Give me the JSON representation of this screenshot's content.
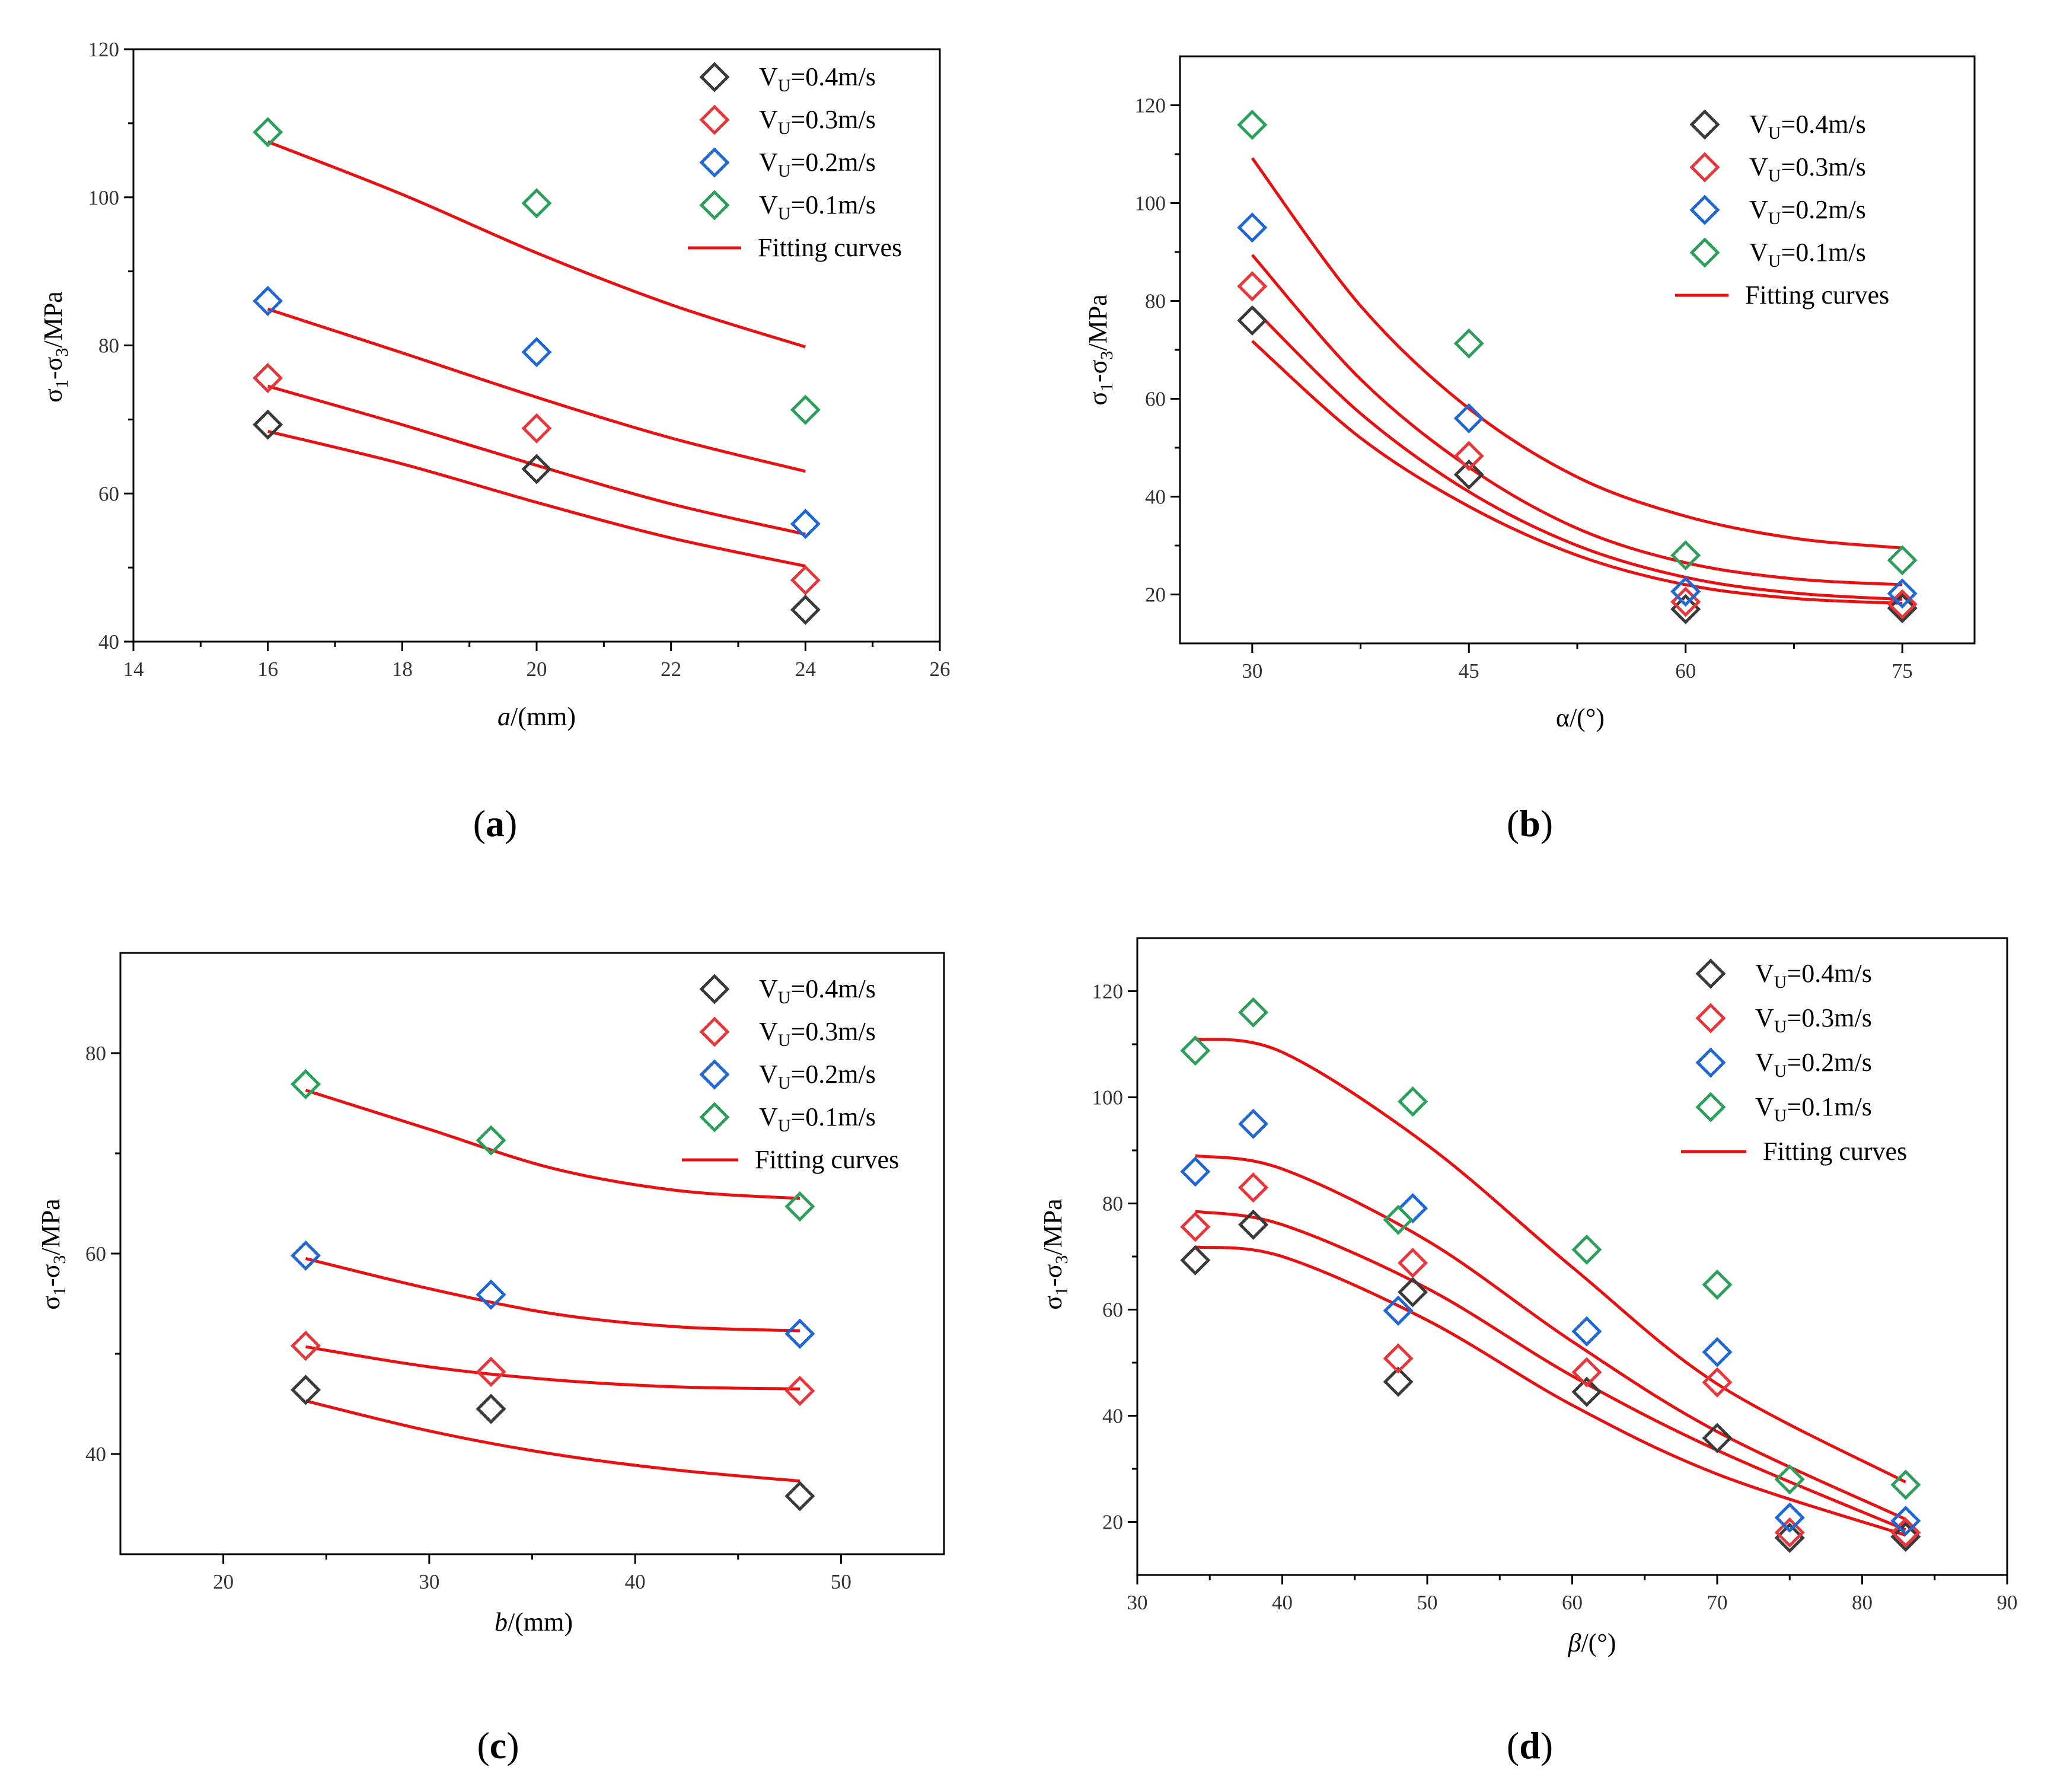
{
  "chart_data": [
    {
      "type": "scatter",
      "panel_label": "(a)",
      "xlabel_italic": "a",
      "xlabel_rest": "/(mm)",
      "ylabel": "σ1-σ3/MPa",
      "xlim": [
        14,
        26
      ],
      "ylim": [
        40,
        120
      ],
      "xticks": [
        14,
        16,
        18,
        20,
        22,
        24,
        26
      ],
      "yticks": [
        40,
        60,
        80,
        100,
        120
      ],
      "legend_position": "top-right",
      "series": [
        {
          "name": "VU=0.4m/s",
          "label_main": "V",
          "label_sub": "U",
          "label_rest": "=0.4m/s",
          "color": "#3a3a3a",
          "points": [
            [
              16,
              69.3
            ],
            [
              20,
              63.3
            ],
            [
              24,
              44.3
            ]
          ],
          "fit": [
            [
              16,
              68.4
            ],
            [
              18,
              64.0
            ],
            [
              20,
              58.8
            ],
            [
              22,
              54.0
            ],
            [
              24,
              50.2
            ]
          ]
        },
        {
          "name": "VU=0.3m/s",
          "label_main": "V",
          "label_sub": "U",
          "label_rest": "=0.3m/s",
          "color": "#e8363a",
          "points": [
            [
              16,
              75.6
            ],
            [
              20,
              68.8
            ],
            [
              24,
              48.3
            ]
          ],
          "fit": [
            [
              16,
              74.5
            ],
            [
              18,
              69.3
            ],
            [
              20,
              63.8
            ],
            [
              22,
              58.6
            ],
            [
              24,
              54.5
            ]
          ]
        },
        {
          "name": "VU=0.2m/s",
          "label_main": "V",
          "label_sub": "U",
          "label_rest": "=0.2m/s",
          "color": "#1f66d6",
          "points": [
            [
              16,
              86.0
            ],
            [
              20,
              79.1
            ],
            [
              24,
              55.9
            ]
          ],
          "fit": [
            [
              16,
              84.9
            ],
            [
              18,
              79.0
            ],
            [
              20,
              73.0
            ],
            [
              22,
              67.5
            ],
            [
              24,
              63.0
            ]
          ]
        },
        {
          "name": "VU=0.1m/s",
          "label_main": "V",
          "label_sub": "U",
          "label_rest": "=0.1m/s",
          "color": "#2ca05a",
          "points": [
            [
              16,
              108.8
            ],
            [
              20,
              99.2
            ],
            [
              24,
              71.3
            ]
          ],
          "fit": [
            [
              16,
              107.5
            ],
            [
              18,
              100.4
            ],
            [
              20,
              92.5
            ],
            [
              22,
              85.5
            ],
            [
              24,
              79.8
            ]
          ]
        }
      ],
      "fit_label": "Fitting curves"
    },
    {
      "type": "scatter",
      "panel_label": "(b)",
      "xlabel_italic": "",
      "xlabel_rest": "α/(°)",
      "ylabel": "σ1-σ3/MPa",
      "xlim": [
        25,
        80
      ],
      "ylim": [
        10,
        130
      ],
      "xticks": [
        30,
        45,
        60,
        75
      ],
      "yticks": [
        20,
        40,
        60,
        80,
        100,
        120
      ],
      "legend_position": "top-right",
      "series": [
        {
          "name": "VU=0.4m/s",
          "label_main": "V",
          "label_sub": "U",
          "label_rest": "=0.4m/s",
          "color": "#3a3a3a",
          "points": [
            [
              30,
              76.0
            ],
            [
              45,
              44.5
            ],
            [
              60,
              17.0
            ],
            [
              75,
              17.2
            ]
          ],
          "fit": [
            [
              30,
              71.8
            ],
            [
              37.5,
              52.0
            ],
            [
              45,
              38.0
            ],
            [
              52.5,
              28.0
            ],
            [
              60,
              22.0
            ],
            [
              67.5,
              19.2
            ],
            [
              75,
              18.2
            ]
          ]
        },
        {
          "name": "VU=0.3m/s",
          "label_main": "V",
          "label_sub": "U",
          "label_rest": "=0.3m/s",
          "color": "#e8363a",
          "points": [
            [
              30,
              83.0
            ],
            [
              45,
              48.3
            ],
            [
              60,
              18.5
            ],
            [
              75,
              18.0
            ]
          ],
          "fit": [
            [
              30,
              78.7
            ],
            [
              37.5,
              57.0
            ],
            [
              45,
              41.0
            ],
            [
              52.5,
              30.0
            ],
            [
              60,
              23.5
            ],
            [
              67.5,
              20.3
            ],
            [
              75,
              19.0
            ]
          ]
        },
        {
          "name": "VU=0.2m/s",
          "label_main": "V",
          "label_sub": "U",
          "label_rest": "=0.2m/s",
          "color": "#1f66d6",
          "points": [
            [
              30,
              95.0
            ],
            [
              45,
              56.0
            ],
            [
              60,
              20.6
            ],
            [
              75,
              20.2
            ]
          ],
          "fit": [
            [
              30,
              89.4
            ],
            [
              37.5,
              64.0
            ],
            [
              45,
              46.0
            ],
            [
              52.5,
              33.5
            ],
            [
              60,
              26.5
            ],
            [
              67.5,
              23.2
            ],
            [
              75,
              22.0
            ]
          ]
        },
        {
          "name": "VU=0.1m/s",
          "label_main": "V",
          "label_sub": "U",
          "label_rest": "=0.1m/s",
          "color": "#2ca05a",
          "points": [
            [
              30,
              116.0
            ],
            [
              45,
              71.3
            ],
            [
              60,
              28.0
            ],
            [
              75,
              27.0
            ]
          ],
          "fit": [
            [
              30,
              109.2
            ],
            [
              37.5,
              79.0
            ],
            [
              45,
              58.0
            ],
            [
              52.5,
              44.0
            ],
            [
              60,
              36.0
            ],
            [
              67.5,
              31.5
            ],
            [
              75,
              29.5
            ]
          ]
        }
      ],
      "fit_label": "Fitting curves"
    },
    {
      "type": "scatter",
      "panel_label": "(c)",
      "xlabel_italic": "b",
      "xlabel_rest": "/(mm)",
      "ylabel": "σ1-σ3/MPa",
      "xlim": [
        15,
        55
      ],
      "ylim": [
        30,
        90
      ],
      "xticks": [
        20,
        30,
        40,
        50
      ],
      "yticks": [
        40,
        60,
        80
      ],
      "legend_position": "top-right",
      "series": [
        {
          "name": "VU=0.4m/s",
          "label_main": "V",
          "label_sub": "U",
          "label_rest": "=0.4m/s",
          "color": "#3a3a3a",
          "points": [
            [
              24,
              46.4
            ],
            [
              33,
              44.5
            ],
            [
              48,
              35.8
            ]
          ],
          "fit": [
            [
              24,
              45.3
            ],
            [
              30,
              42.3
            ],
            [
              36,
              40.0
            ],
            [
              42,
              38.4
            ],
            [
              48,
              37.3
            ]
          ]
        },
        {
          "name": "VU=0.3m/s",
          "label_main": "V",
          "label_sub": "U",
          "label_rest": "=0.3m/s",
          "color": "#e8363a",
          "points": [
            [
              24,
              50.8
            ],
            [
              33,
              48.2
            ],
            [
              48,
              46.3
            ]
          ],
          "fit": [
            [
              24,
              50.7
            ],
            [
              30,
              48.7
            ],
            [
              36,
              47.4
            ],
            [
              42,
              46.7
            ],
            [
              48,
              46.5
            ]
          ]
        },
        {
          "name": "VU=0.2m/s",
          "label_main": "V",
          "label_sub": "U",
          "label_rest": "=0.2m/s",
          "color": "#1f66d6",
          "points": [
            [
              24,
              59.8
            ],
            [
              33,
              55.9
            ],
            [
              48,
              52.0
            ]
          ],
          "fit": [
            [
              24,
              59.5
            ],
            [
              30,
              56.5
            ],
            [
              36,
              54.0
            ],
            [
              42,
              52.7
            ],
            [
              48,
              52.3
            ]
          ]
        },
        {
          "name": "VU=0.1m/s",
          "label_main": "V",
          "label_sub": "U",
          "label_rest": "=0.1m/s",
          "color": "#2ca05a",
          "points": [
            [
              24,
              76.9
            ],
            [
              33,
              71.3
            ],
            [
              48,
              64.7
            ]
          ],
          "fit": [
            [
              24,
              76.3
            ],
            [
              30,
              72.4
            ],
            [
              36,
              68.5
            ],
            [
              42,
              66.3
            ],
            [
              48,
              65.5
            ]
          ]
        }
      ],
      "fit_label": "Fitting curves"
    },
    {
      "type": "scatter",
      "panel_label": "(d)",
      "xlabel_italic": "β",
      "xlabel_rest": "/(°)",
      "ylabel": "σ1-σ3/MPa",
      "xlim": [
        30,
        90
      ],
      "ylim": [
        10,
        130
      ],
      "xticks": [
        30,
        40,
        50,
        60,
        70,
        80,
        90
      ],
      "yticks": [
        20,
        40,
        60,
        80,
        100,
        120
      ],
      "legend_position": "top-right",
      "series": [
        {
          "name": "VU=0.4m/s",
          "label_main": "V",
          "label_sub": "U",
          "label_rest": "=0.4m/s",
          "color": "#3a3a3a",
          "points": [
            [
              34,
              69.3
            ],
            [
              38,
              76.0
            ],
            [
              48,
              46.4
            ],
            [
              49,
              63.3
            ],
            [
              61,
              44.5
            ],
            [
              70,
              35.8
            ],
            [
              75,
              17.0
            ],
            [
              83,
              17.2
            ]
          ],
          "fit": [
            [
              34,
              71.8
            ],
            [
              40,
              70.0
            ],
            [
              50,
              58.0
            ],
            [
              60,
              42.0
            ],
            [
              70,
              29.0
            ],
            [
              83,
              17.5
            ]
          ]
        },
        {
          "name": "VU=0.3m/s",
          "label_main": "V",
          "label_sub": "U",
          "label_rest": "=0.3m/s",
          "color": "#e8363a",
          "points": [
            [
              34,
              75.6
            ],
            [
              38,
              83.0
            ],
            [
              48,
              50.8
            ],
            [
              49,
              68.8
            ],
            [
              61,
              48.2
            ],
            [
              70,
              46.3
            ],
            [
              75,
              18.0
            ],
            [
              83,
              18.0
            ]
          ],
          "fit": [
            [
              34,
              78.5
            ],
            [
              40,
              76.0
            ],
            [
              50,
              64.0
            ],
            [
              60,
              47.5
            ],
            [
              70,
              33.5
            ],
            [
              83,
              18.5
            ]
          ]
        },
        {
          "name": "VU=0.2m/s",
          "label_main": "V",
          "label_sub": "U",
          "label_rest": "=0.2m/s",
          "color": "#1f66d6",
          "points": [
            [
              34,
              86.0
            ],
            [
              38,
              95.0
            ],
            [
              48,
              59.8
            ],
            [
              49,
              79.1
            ],
            [
              61,
              55.9
            ],
            [
              70,
              52.0
            ],
            [
              75,
              20.8
            ],
            [
              83,
              20.2
            ]
          ],
          "fit": [
            [
              34,
              89.0
            ],
            [
              40,
              86.5
            ],
            [
              50,
              73.0
            ],
            [
              60,
              54.0
            ],
            [
              70,
              37.0
            ],
            [
              83,
              20.5
            ]
          ]
        },
        {
          "name": "VU=0.1m/s",
          "label_main": "V",
          "label_sub": "U",
          "label_rest": "=0.1m/s",
          "color": "#2ca05a",
          "points": [
            [
              34,
              108.8
            ],
            [
              38,
              116.0
            ],
            [
              48,
              76.9
            ],
            [
              49,
              99.2
            ],
            [
              61,
              71.3
            ],
            [
              70,
              64.7
            ],
            [
              75,
              28.0
            ],
            [
              83,
              27.0
            ]
          ],
          "fit": [
            [
              34,
              111.0
            ],
            [
              40,
              108.5
            ],
            [
              50,
              91.0
            ],
            [
              60,
              68.0
            ],
            [
              70,
              46.0
            ],
            [
              83,
              27.5
            ]
          ]
        }
      ],
      "fit_label": "Fitting curves"
    }
  ]
}
